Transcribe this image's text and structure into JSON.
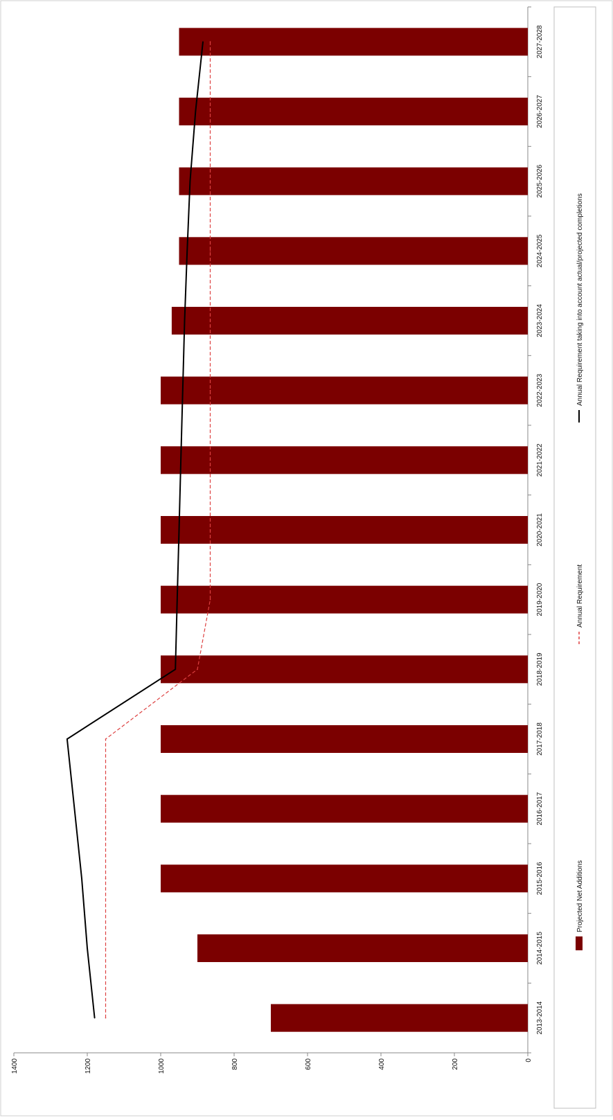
{
  "chart_data": {
    "type": "bar",
    "orientation": "rotated-90-clockwise",
    "categories": [
      "2013-2014",
      "2014-2015",
      "2015-2016",
      "2016-2017",
      "2017-2018",
      "2018-2019",
      "2019-2020",
      "2020-2021",
      "2021-2022",
      "2022-2023",
      "2023-2024",
      "2024-2025",
      "2025-2026",
      "2026-2027",
      "2027-2028"
    ],
    "ylim": [
      0,
      1400
    ],
    "yticks": [
      0,
      200,
      400,
      600,
      800,
      1000,
      1200,
      1400
    ],
    "grid": false,
    "legend_position": "bottom",
    "series": [
      {
        "name": "Projected Net Additions",
        "kind": "bar",
        "values": [
          700,
          900,
          1000,
          1000,
          1000,
          1000,
          1000,
          1000,
          1000,
          1000,
          970,
          950,
          950,
          950,
          950
        ]
      },
      {
        "name": "Annual Requirement",
        "kind": "dashed-line",
        "values": [
          1150,
          1150,
          1150,
          1150,
          1150,
          900,
          865,
          865,
          865,
          865,
          865,
          865,
          865,
          865,
          865
        ]
      },
      {
        "name": "Annual Requirement taking into account actual/projected completions",
        "kind": "line",
        "values": [
          1180,
          1200,
          1215,
          1235,
          1255,
          960,
          955,
          950,
          945,
          940,
          935,
          928,
          920,
          905,
          885
        ]
      }
    ]
  },
  "colors": {
    "bar": "#7b0000",
    "dashed_line": "#dd4040",
    "solid_line": "#000000",
    "axis": "#888888"
  }
}
